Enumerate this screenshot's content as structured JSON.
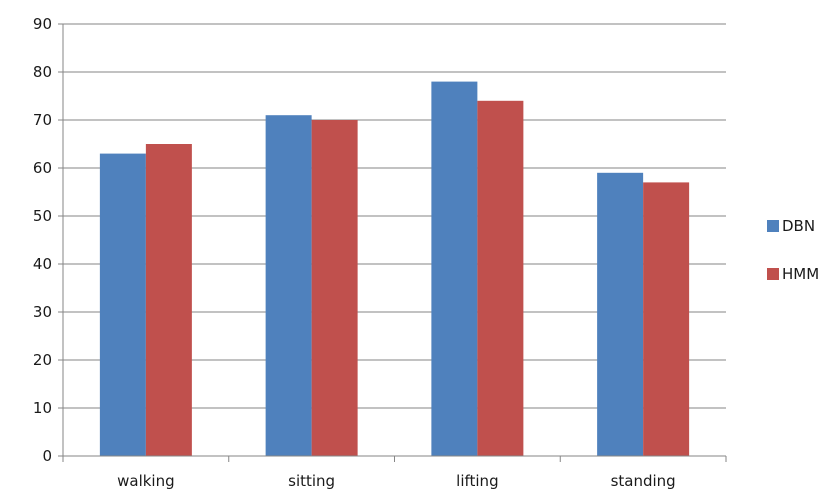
{
  "chart_data": {
    "type": "bar",
    "title": "",
    "xlabel": "",
    "ylabel": "",
    "categories": [
      "walking",
      "sitting",
      "lifting",
      "standing"
    ],
    "series": [
      {
        "name": "DBN",
        "values": [
          63,
          71,
          78,
          59
        ],
        "color": "#4f81bd"
      },
      {
        "name": "HMM",
        "values": [
          65,
          70,
          74,
          57
        ],
        "color": "#c0504d"
      }
    ],
    "ylim": [
      0,
      90
    ],
    "yticks": [
      0,
      10,
      20,
      30,
      40,
      50,
      60,
      70,
      80,
      90
    ],
    "grid": true,
    "legend_position": "right"
  }
}
